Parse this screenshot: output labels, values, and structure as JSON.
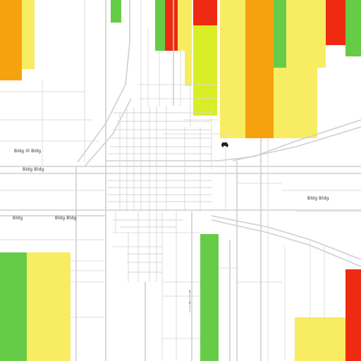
{
  "labels": {
    "road_label_1": "Bldg Ill Bldg",
    "road_label_2": "Bldg Bldg",
    "road_label_3": "Bldg Bldg",
    "road_label_4": "Bldg Bldg",
    "road_label_5": "Bldg",
    "road_label_6": "Bill Bill"
  },
  "poi_icon": "car-icon",
  "colors": {
    "red": "#ee2a12",
    "orange": "#f6a20e",
    "yellow": "#f8ec62",
    "yellow_green": "#d9ee24",
    "green": "#66cc47",
    "road": "#cfcfcf"
  }
}
